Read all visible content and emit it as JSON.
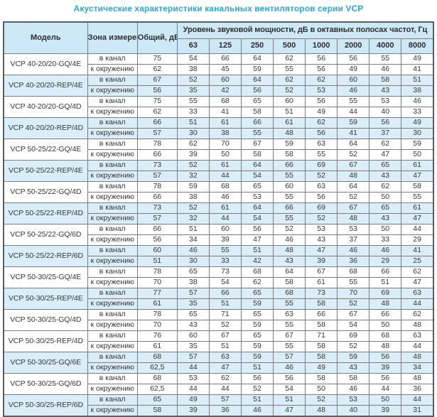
{
  "title": "Акустические характеристики канальных вентиляторов  серии VCP",
  "colors": {
    "title_text": "#29a8df",
    "header_background": "#cde9f7",
    "shaded_row_background": "#d9eef9",
    "border": "#7c7c7c"
  },
  "table": {
    "headers": {
      "model": "Модель",
      "zone": "Зона измерения",
      "total": "Общий, дБА",
      "group": "Уровень звуковой мощности, дБ в октавных полосах частот, Гц",
      "frequencies": [
        "63",
        "125",
        "250",
        "500",
        "1000",
        "2000",
        "4000",
        "8000"
      ]
    },
    "models": [
      {
        "name": "VCP 40-20/20-GQ/4E",
        "shaded": false,
        "rows": [
          {
            "zone": "в канал",
            "total": "75",
            "levels": [
              54,
              66,
              64,
              62,
              56,
              56,
              55,
              49
            ]
          },
          {
            "zone": "к окружению",
            "total": "62",
            "levels": [
              38,
              45,
              59,
              55,
              56,
              49,
              46,
              41
            ]
          }
        ]
      },
      {
        "name": "VCP 40-20/20-REP/4E",
        "shaded": true,
        "rows": [
          {
            "zone": "в канал",
            "total": "67",
            "levels": [
              52,
              60,
              64,
              62,
              62,
              60,
              58,
              51
            ]
          },
          {
            "zone": "к окружению",
            "total": "56",
            "levels": [
              35,
              42,
              56,
              52,
              53,
              46,
              43,
              38
            ]
          }
        ]
      },
      {
        "name": "VCP 40-20/20-GQ/4D",
        "shaded": false,
        "rows": [
          {
            "zone": "в канал",
            "total": "75",
            "levels": [
              55,
              68,
              65,
              60,
              56,
              55,
              53,
              46
            ]
          },
          {
            "zone": "к окружению",
            "total": "62",
            "levels": [
              33,
              41,
              58,
              51,
              49,
              44,
              40,
              33
            ]
          }
        ]
      },
      {
        "name": "VCP 40-20/20-REP/4D",
        "shaded": true,
        "rows": [
          {
            "zone": "в канал",
            "total": "66",
            "levels": [
              51,
              61,
              66,
              61,
              62,
              59,
              56,
              49
            ]
          },
          {
            "zone": "к окружению",
            "total": "57",
            "levels": [
              30,
              38,
              55,
              48,
              56,
              41,
              37,
              30
            ]
          }
        ]
      },
      {
        "name": "VCP 50-25/22-GQ/4E",
        "shaded": false,
        "rows": [
          {
            "zone": "в канал",
            "total": "78",
            "levels": [
              62,
              70,
              67,
              59,
              63,
              64,
              62,
              59
            ]
          },
          {
            "zone": "к окружению",
            "total": "66",
            "levels": [
              39,
              50,
              58,
              58,
              55,
              52,
              47,
              50
            ]
          }
        ]
      },
      {
        "name": "VCP 50-25/22-REP/4E",
        "shaded": true,
        "rows": [
          {
            "zone": "в канал",
            "total": "73",
            "levels": [
              52,
              61,
              64,
              66,
              69,
              67,
              65,
              61
            ]
          },
          {
            "zone": "к окружению",
            "total": "57",
            "levels": [
              32,
              44,
              54,
              55,
              52,
              48,
              43,
              47
            ]
          }
        ]
      },
      {
        "name": "VCP 50-25/22-GQ/4D",
        "shaded": false,
        "rows": [
          {
            "zone": "в канал",
            "total": "78",
            "levels": [
              59,
              68,
              65,
              60,
              63,
              64,
              62,
              58
            ]
          },
          {
            "zone": "к окружению",
            "total": "66",
            "levels": [
              38,
              46,
              53,
              55,
              56,
              52,
              50,
              55
            ]
          }
        ]
      },
      {
        "name": "VCP 50-25/22-REP/4D",
        "shaded": true,
        "rows": [
          {
            "zone": "в канал",
            "total": "73",
            "levels": [
              52,
              61,
              64,
              66,
              69,
              67,
              65,
              61
            ]
          },
          {
            "zone": "к окружению",
            "total": "57",
            "levels": [
              32,
              44,
              54,
              55,
              52,
              48,
              43,
              47
            ]
          }
        ]
      },
      {
        "name": "VCP 50-25/22-GQ/6D",
        "shaded": false,
        "rows": [
          {
            "zone": "в канал",
            "total": "66",
            "levels": [
              51,
              60,
              56,
              52,
              53,
              53,
              50,
              44
            ]
          },
          {
            "zone": "к окружению",
            "total": "56",
            "levels": [
              34,
              39,
              47,
              46,
              43,
              37,
              33,
              29
            ]
          }
        ]
      },
      {
        "name": "VCP 50-25/22-REP/6D",
        "shaded": true,
        "rows": [
          {
            "zone": "в канал",
            "total": "60",
            "levels": [
              46,
              55,
              51,
              48,
              47,
              46,
              46,
              41
            ]
          },
          {
            "zone": "к окружению",
            "total": "51",
            "levels": [
              30,
              33,
              42,
              43,
              39,
              36,
              29,
              25
            ]
          }
        ]
      },
      {
        "name": "VCP 50-30/25-GQ/4E",
        "shaded": false,
        "rows": [
          {
            "zone": "в канал",
            "total": "78",
            "levels": [
              65,
              73,
              68,
              64,
              67,
              68,
              66,
              62
            ]
          },
          {
            "zone": "к окружению",
            "total": "70",
            "levels": [
              38,
              54,
              62,
              58,
              61,
              55,
              51,
              47
            ]
          }
        ]
      },
      {
        "name": "VCP 50-30/25-REP/4E",
        "shaded": true,
        "rows": [
          {
            "zone": "в канал",
            "total": "77",
            "levels": [
              57,
              66,
              65,
              68,
              73,
              70,
              69,
              63
            ]
          },
          {
            "zone": "к окружению",
            "total": "61",
            "levels": [
              35,
              51,
              59,
              55,
              58,
              52,
              48,
              44
            ]
          }
        ]
      },
      {
        "name": "VCP 50-30/25-GQ/4D",
        "shaded": false,
        "rows": [
          {
            "zone": "в канал",
            "total": "78",
            "levels": [
              65,
              71,
              65,
              63,
              66,
              67,
              66,
              62
            ]
          },
          {
            "zone": "к окружению",
            "total": "70",
            "levels": [
              43,
              52,
              59,
              55,
              58,
              54,
              50,
              48
            ]
          }
        ]
      },
      {
        "name": "VCP 50-30/25-REP/4D",
        "shaded": false,
        "rows": [
          {
            "zone": "в канал",
            "total": "76",
            "levels": [
              60,
              67,
              65,
              67,
              71,
              69,
              68,
              63
            ]
          },
          {
            "zone": "к окружению",
            "total": "61",
            "levels": [
              35,
              51,
              59,
              55,
              58,
              52,
              48,
              44
            ]
          }
        ]
      },
      {
        "name": "VCP 50-30/25-GQ/6E",
        "shaded": true,
        "rows": [
          {
            "zone": "в канал",
            "total": "68",
            "levels": [
              57,
              63,
              59,
              57,
              58,
              59,
              56,
              48
            ]
          },
          {
            "zone": "к окружению",
            "total": "62,5",
            "levels": [
              44,
              47,
              51,
              46,
              49,
              43,
              39,
              34
            ]
          }
        ]
      },
      {
        "name": "VCP 50-30/25-GQ/6D",
        "shaded": false,
        "rows": [
          {
            "zone": "в канал",
            "total": "68",
            "levels": [
              53,
              62,
              56,
              56,
              58,
              58,
              56,
              48
            ]
          },
          {
            "zone": "к окружению",
            "total": "62,5",
            "levels": [
              44,
              44,
              52,
              54,
              50,
              46,
              44,
              36
            ]
          }
        ]
      },
      {
        "name": "VCP 50-30/25-REP/6D",
        "shaded": true,
        "rows": [
          {
            "zone": "в канал",
            "total": "65",
            "levels": [
              49,
              57,
              51,
              51,
              52,
              53,
              50,
              44
            ]
          },
          {
            "zone": "к окружению",
            "total": "58",
            "levels": [
              39,
              36,
              46,
              47,
              48,
              40,
              39,
              31
            ]
          }
        ]
      }
    ]
  }
}
